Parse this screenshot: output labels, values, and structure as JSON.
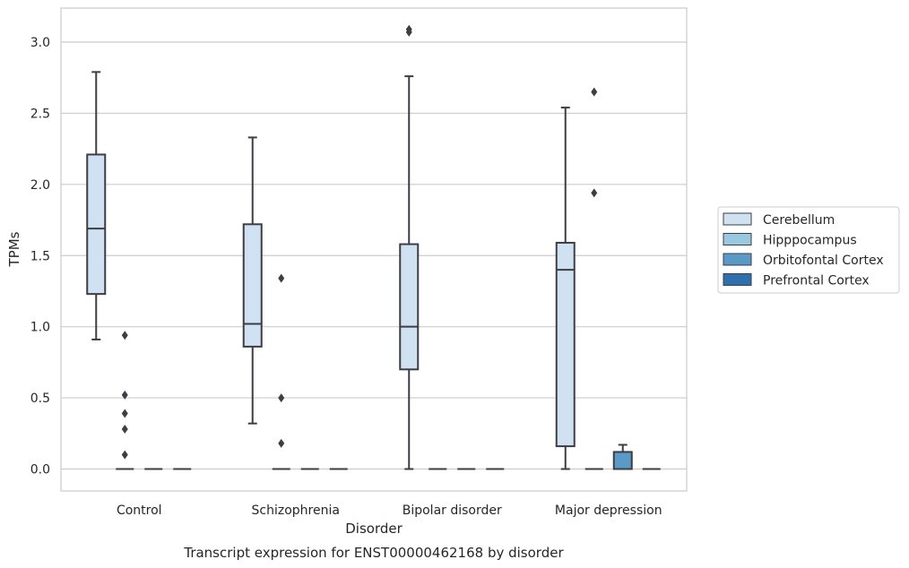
{
  "chart_data": {
    "type": "box",
    "title": "Transcript expression for ENST00000462168 by disorder",
    "xlabel": "Disorder",
    "ylabel": "TPMs",
    "ylim": [
      -0.15,
      3.25
    ],
    "yticks": [
      "0.0",
      "0.5",
      "1.0",
      "1.5",
      "2.0",
      "2.5",
      "3.0"
    ],
    "grid": true,
    "legend_position": "right",
    "categories": [
      "Control",
      "Schizophrenia",
      "Bipolar disorder",
      "Major depression"
    ],
    "series": [
      {
        "name": "Cerebellum",
        "color": "#d0e1f2",
        "boxes": [
          {
            "category": "Control",
            "whisker_low": 0.91,
            "q1": 1.23,
            "median": 1.69,
            "q3": 2.21,
            "whisker_high": 2.79,
            "outliers": []
          },
          {
            "category": "Schizophrenia",
            "whisker_low": 0.32,
            "q1": 0.86,
            "median": 1.02,
            "q3": 1.72,
            "whisker_high": 2.33,
            "outliers": []
          },
          {
            "category": "Bipolar disorder",
            "whisker_low": 0.0,
            "q1": 0.7,
            "median": 1.0,
            "q3": 1.58,
            "whisker_high": 2.76,
            "outliers": [
              3.07,
              3.09
            ]
          },
          {
            "category": "Major depression",
            "whisker_low": 0.0,
            "q1": 0.16,
            "median": 1.4,
            "q3": 1.59,
            "whisker_high": 2.54,
            "outliers": []
          }
        ]
      },
      {
        "name": "Hipppocampus",
        "color": "#9ac8e0",
        "boxes": [
          {
            "category": "Control",
            "whisker_low": 0.0,
            "q1": 0.0,
            "median": 0.0,
            "q3": 0.0,
            "whisker_high": 0.0,
            "outliers": [
              0.1,
              0.28,
              0.39,
              0.52,
              0.94
            ]
          },
          {
            "category": "Schizophrenia",
            "whisker_low": 0.0,
            "q1": 0.0,
            "median": 0.0,
            "q3": 0.0,
            "whisker_high": 0.0,
            "outliers": [
              0.18,
              0.5,
              1.34
            ]
          },
          {
            "category": "Bipolar disorder",
            "whisker_low": 0.0,
            "q1": 0.0,
            "median": 0.0,
            "q3": 0.0,
            "whisker_high": 0.0,
            "outliers": []
          },
          {
            "category": "Major depression",
            "whisker_low": 0.0,
            "q1": 0.0,
            "median": 0.0,
            "q3": 0.0,
            "whisker_high": 0.0,
            "outliers": [
              1.94,
              2.65
            ]
          }
        ]
      },
      {
        "name": "Orbitofontal Cortex",
        "color": "#5a9ac6",
        "boxes": [
          {
            "category": "Control",
            "whisker_low": 0.0,
            "q1": 0.0,
            "median": 0.0,
            "q3": 0.0,
            "whisker_high": 0.0,
            "outliers": []
          },
          {
            "category": "Schizophrenia",
            "whisker_low": 0.0,
            "q1": 0.0,
            "median": 0.0,
            "q3": 0.0,
            "whisker_high": 0.0,
            "outliers": []
          },
          {
            "category": "Bipolar disorder",
            "whisker_low": 0.0,
            "q1": 0.0,
            "median": 0.0,
            "q3": 0.0,
            "whisker_high": 0.0,
            "outliers": []
          },
          {
            "category": "Major depression",
            "whisker_low": 0.0,
            "q1": 0.0,
            "median": 0.0,
            "q3": 0.12,
            "whisker_high": 0.17,
            "outliers": []
          }
        ]
      },
      {
        "name": "Prefrontal Cortex",
        "color": "#2f6fad",
        "boxes": [
          {
            "category": "Control",
            "whisker_low": 0.0,
            "q1": 0.0,
            "median": 0.0,
            "q3": 0.0,
            "whisker_high": 0.0,
            "outliers": []
          },
          {
            "category": "Schizophrenia",
            "whisker_low": 0.0,
            "q1": 0.0,
            "median": 0.0,
            "q3": 0.0,
            "whisker_high": 0.0,
            "outliers": []
          },
          {
            "category": "Bipolar disorder",
            "whisker_low": 0.0,
            "q1": 0.0,
            "median": 0.0,
            "q3": 0.0,
            "whisker_high": 0.0,
            "outliers": []
          },
          {
            "category": "Major depression",
            "whisker_low": 0.0,
            "q1": 0.0,
            "median": 0.0,
            "q3": 0.0,
            "whisker_high": 0.0,
            "outliers": []
          }
        ]
      }
    ],
    "colors": {
      "line": "#3d3d45",
      "grid": "#cccccc",
      "frame": "#cccccc"
    }
  }
}
